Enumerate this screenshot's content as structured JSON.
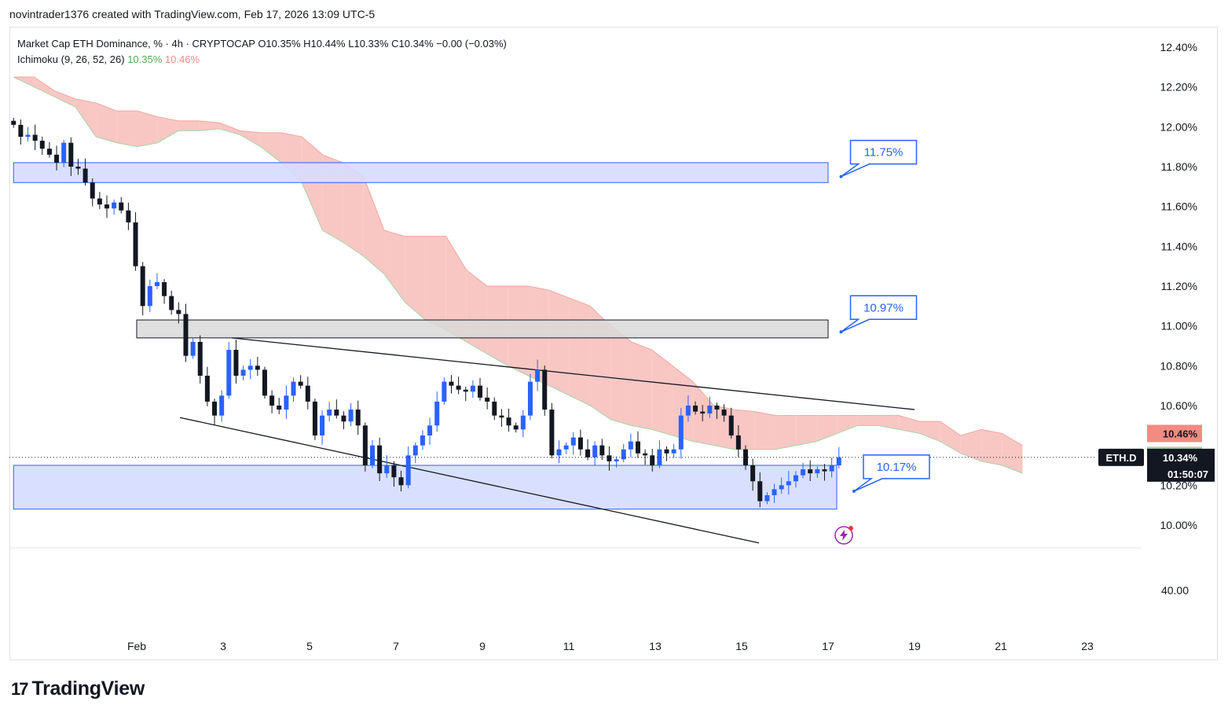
{
  "credit": "novintrader1376 created with TradingView.com, Feb 17, 2026 13:09 UTC-5",
  "legend": {
    "line1": "Market Cap ETH Dominance, % · 4h · CRYPTOCAP  O10.35%  H10.44%  L10.33%  C10.34%  −0.00 (−0.03%)",
    "line2_label": "Ichimoku (9, 26, 52, 26)",
    "line2_val1": "10.35%",
    "line2_val2": "10.46%"
  },
  "logo": {
    "mark": "17",
    "text": "TradingView"
  },
  "colors": {
    "bull": "#2962ff",
    "bear": "#131722",
    "cloud_red": "#f8c7c4",
    "cloud_green": "#cfe8d0",
    "zone_blue": "#d5ddff",
    "zone_border": "#2962ff",
    "zone_gray": "#d9d9d9",
    "callout": "#2962ff"
  },
  "chart_data": {
    "type": "candlestick",
    "title": "Market Cap ETH Dominance, % · 4h · CRYPTOCAP",
    "ylim": [
      9.9,
      12.5
    ],
    "y_ticks": [
      "12.40%",
      "12.20%",
      "12.00%",
      "11.80%",
      "11.60%",
      "11.40%",
      "11.20%",
      "11.00%",
      "10.80%",
      "10.60%",
      "10.20%",
      "10.00%"
    ],
    "y_tick_values": [
      12.4,
      12.2,
      12.0,
      11.8,
      11.6,
      11.4,
      11.2,
      11.0,
      10.8,
      10.6,
      10.2,
      10.0
    ],
    "volume_tick": "40.00",
    "x_ticks": [
      "Feb",
      "3",
      "5",
      "7",
      "9",
      "11",
      "13",
      "15",
      "17",
      "19",
      "21",
      "23"
    ],
    "x_tick_days": [
      1,
      3,
      5,
      7,
      9,
      11,
      13,
      15,
      17,
      19,
      21,
      23
    ],
    "x_range_days": [
      -1.85,
      25.4
    ],
    "closes": [
      12.01,
      11.95,
      11.96,
      11.93,
      11.89,
      11.86,
      11.82,
      11.92,
      11.8,
      11.79,
      11.72,
      11.64,
      11.61,
      11.59,
      11.62,
      11.58,
      11.52,
      11.3,
      11.1,
      11.2,
      11.22,
      11.15,
      11.08,
      11.06,
      10.85,
      10.92,
      10.75,
      10.62,
      10.55,
      10.65,
      10.88,
      10.75,
      10.78,
      10.8,
      10.78,
      10.65,
      10.6,
      10.58,
      10.65,
      10.72,
      10.7,
      10.62,
      10.45,
      10.55,
      10.58,
      10.55,
      10.52,
      10.58,
      10.5,
      10.3,
      10.4,
      10.26,
      10.3,
      10.24,
      10.2,
      10.35,
      10.4,
      10.45,
      10.5,
      10.62,
      10.72,
      10.7,
      10.68,
      10.67,
      10.7,
      10.64,
      10.62,
      10.55,
      10.54,
      10.5,
      10.48,
      10.55,
      10.72,
      10.78,
      10.58,
      10.35,
      10.38,
      10.4,
      10.44,
      10.38,
      10.34,
      10.4,
      10.35,
      10.32,
      10.33,
      10.38,
      10.42,
      10.36,
      10.35,
      10.3,
      10.38,
      10.36,
      10.38,
      10.55,
      10.6,
      10.57,
      10.56,
      10.6,
      10.58,
      10.55,
      10.45,
      10.38,
      10.3,
      10.22,
      10.12,
      10.15,
      10.18,
      10.2,
      10.22,
      10.25,
      10.28,
      10.26,
      10.28,
      10.27,
      10.3,
      10.34
    ],
    "cloud_upper": [
      12.25,
      12.25,
      12.18,
      12.14,
      12.12,
      12.08,
      12.08,
      12.05,
      12.03,
      12.03,
      12.02,
      11.98,
      11.97,
      11.97,
      11.95,
      11.86,
      11.82,
      11.75,
      11.48,
      11.45,
      11.45,
      11.45,
      11.28,
      11.2,
      11.2,
      11.2,
      11.18,
      11.14,
      11.1,
      11.0,
      10.92,
      10.88,
      10.8,
      10.72,
      10.6,
      10.58,
      10.57,
      10.55,
      10.55,
      10.55,
      10.55,
      10.55,
      10.55,
      10.55,
      10.52,
      10.52,
      10.45,
      10.48,
      10.46,
      10.4
    ],
    "cloud_lower": [
      12.25,
      12.2,
      12.15,
      12.1,
      11.95,
      11.92,
      11.9,
      11.92,
      11.98,
      11.98,
      11.99,
      11.96,
      11.9,
      11.82,
      11.72,
      11.48,
      11.42,
      11.35,
      11.26,
      11.12,
      11.03,
      10.98,
      10.92,
      10.86,
      10.8,
      10.75,
      10.7,
      10.65,
      10.6,
      10.53,
      10.5,
      10.48,
      10.45,
      10.42,
      10.4,
      10.38,
      10.38,
      10.38,
      10.4,
      10.42,
      10.46,
      10.5,
      10.5,
      10.48,
      10.46,
      10.42,
      10.36,
      10.32,
      10.3,
      10.26
    ],
    "zones": [
      {
        "name": "upper-blue-zone",
        "y1": 11.82,
        "y2": 11.72,
        "d1": -1.85,
        "d2": 17.0
      },
      {
        "name": "gray-zone",
        "y1": 11.03,
        "y2": 10.94,
        "d1": 1.0,
        "d2": 17.0
      },
      {
        "name": "lower-blue-zone",
        "y1": 10.3,
        "y2": 10.08,
        "d1": -1.85,
        "d2": 17.2
      }
    ],
    "trendlines": [
      {
        "name": "upper-trendline",
        "d1": 3.2,
        "v1": 10.94,
        "d2": 19.0,
        "v2": 10.58
      },
      {
        "name": "lower-trendline",
        "d1": 2.0,
        "v1": 10.54,
        "d2": 15.4,
        "v2": 9.91
      }
    ],
    "annotations": [
      {
        "name": "callout-1175",
        "label": "11.75%",
        "d": 17.3,
        "v": 11.75
      },
      {
        "name": "callout-1097",
        "label": "10.97%",
        "d": 17.3,
        "v": 10.97
      },
      {
        "name": "callout-1017",
        "label": "10.17%",
        "d": 17.6,
        "v": 10.17
      }
    ],
    "current_price": {
      "symbol": "ETH.D",
      "price": "10.34%",
      "countdown": "01:50:07",
      "value": 10.34
    },
    "span_a_badge": {
      "label": "10.35%",
      "value": 10.35
    },
    "span_b_badge": {
      "label": "10.46%",
      "value": 10.46
    }
  }
}
